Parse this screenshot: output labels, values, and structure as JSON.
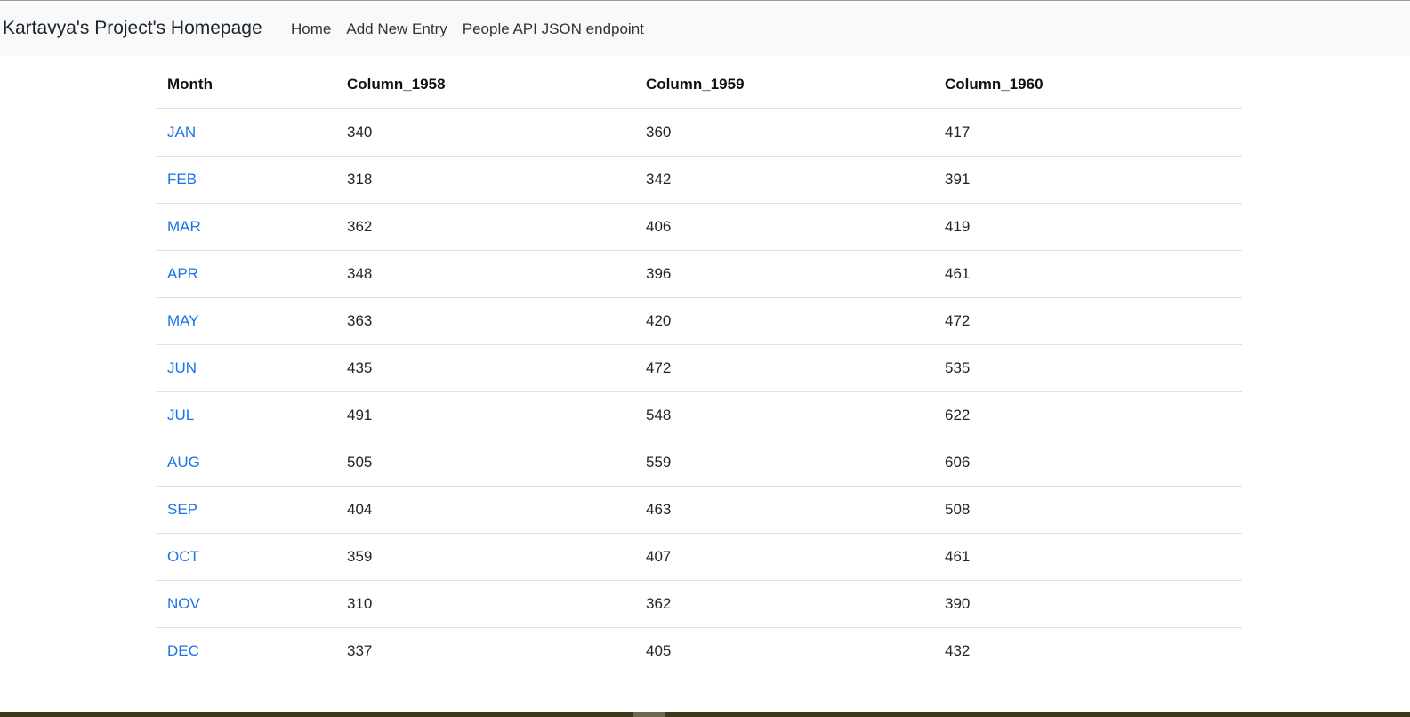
{
  "navbar": {
    "brand": "Kartavya's Project's Homepage",
    "links": [
      "Home",
      "Add New Entry",
      "People API JSON endpoint"
    ]
  },
  "table": {
    "headers": [
      "Month",
      "Column_1958",
      "Column_1959",
      "Column_1960"
    ],
    "rows": [
      [
        "JAN",
        "340",
        "360",
        "417"
      ],
      [
        "FEB",
        "318",
        "342",
        "391"
      ],
      [
        "MAR",
        "362",
        "406",
        "419"
      ],
      [
        "APR",
        "348",
        "396",
        "461"
      ],
      [
        "MAY",
        "363",
        "420",
        "472"
      ],
      [
        "JUN",
        "435",
        "472",
        "535"
      ],
      [
        "JUL",
        "491",
        "548",
        "622"
      ],
      [
        "AUG",
        "505",
        "559",
        "606"
      ],
      [
        "SEP",
        "404",
        "463",
        "508"
      ],
      [
        "OCT",
        "359",
        "407",
        "461"
      ],
      [
        "NOV",
        "310",
        "362",
        "390"
      ],
      [
        "DEC",
        "337",
        "405",
        "432"
      ]
    ]
  },
  "colors": {
    "navbar_bg": "#f8f9fa",
    "link": "#1a73e8",
    "border": "#dee2e6"
  }
}
